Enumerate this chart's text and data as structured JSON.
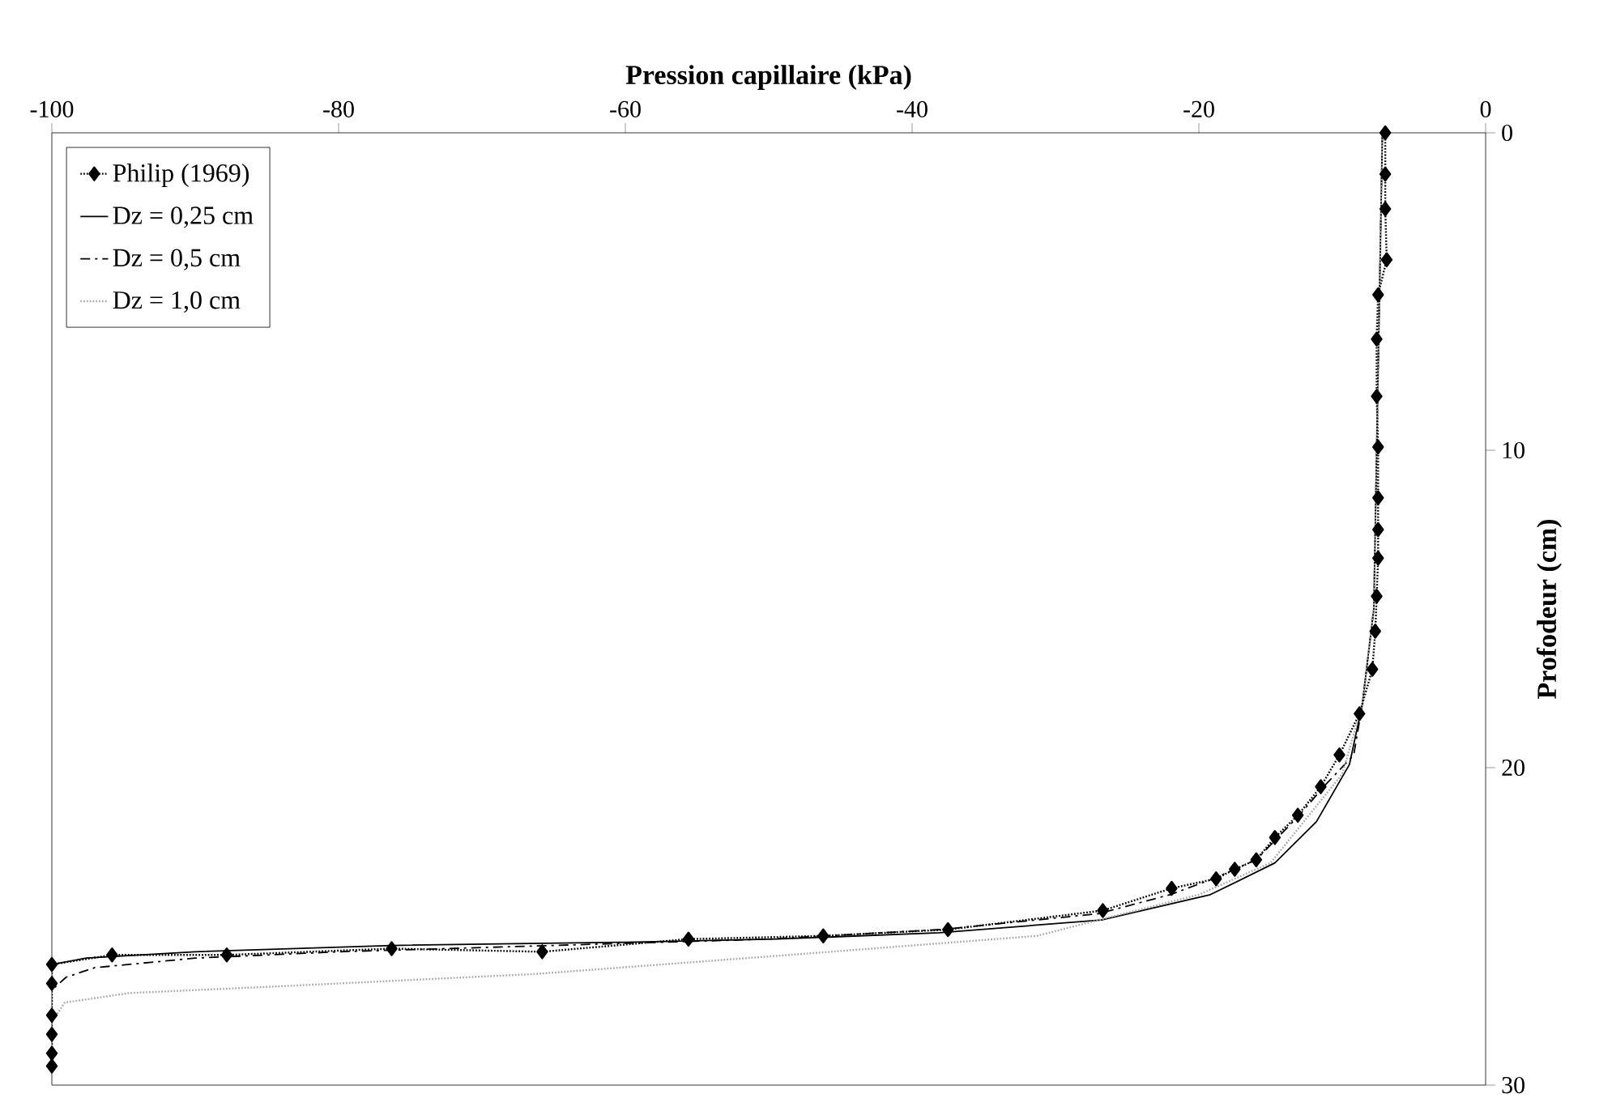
{
  "chart_data": {
    "type": "line",
    "xlabel": "Pression capillaire (kPa)",
    "ylabel": "Profodeur (cm)",
    "xlim": [
      -100,
      0
    ],
    "ylim": [
      30,
      0
    ],
    "xticks": [
      -100,
      -80,
      -60,
      -40,
      -20,
      0
    ],
    "yticks": [
      0,
      10,
      20,
      30
    ],
    "grid": false,
    "legend": "top left",
    "series": [
      {
        "name": "Philip (1969)",
        "color": "#000000",
        "marker": "diamond",
        "line_style": "dotted",
        "x": [
          -7.0,
          -7.0,
          -7.0,
          -6.9,
          -7.5,
          -7.6,
          -7.6,
          -7.5,
          -7.5,
          -7.5,
          -7.5,
          -7.6,
          -7.7,
          -7.9,
          -8.8,
          -10.2,
          -11.5,
          -13.1,
          -14.7,
          -16.0,
          -17.5,
          -18.8,
          -21.9,
          -26.7,
          -37.5,
          -46.2,
          -55.6,
          -65.8,
          -76.3,
          -87.8,
          -95.8,
          -100,
          -100,
          -100,
          -100,
          -100,
          -100
        ],
        "values": [
          0,
          1.3,
          2.4,
          4.0,
          5.1,
          6.5,
          8.3,
          9.9,
          11.5,
          12.5,
          13.4,
          14.6,
          15.7,
          16.9,
          18.3,
          19.6,
          20.6,
          21.5,
          22.2,
          22.9,
          23.2,
          23.5,
          23.8,
          24.5,
          25.1,
          25.3,
          25.4,
          25.8,
          25.7,
          25.9,
          25.9,
          26.2,
          26.8,
          27.8,
          28.4,
          29.0,
          29.4
        ]
      },
      {
        "name": "Dz = 0,25 cm",
        "color": "#000000",
        "marker": "none",
        "line_style": "solid",
        "x": [
          -7.2,
          -7.4,
          -7.6,
          -7.8,
          -8.6,
          -9.5,
          -11.8,
          -14.7,
          -19.2,
          -26.8,
          -38.1,
          -49.4,
          -60.0,
          -76.3,
          -90.0,
          -97.6,
          -100
        ],
        "values": [
          0,
          5,
          10,
          15,
          18,
          19.9,
          21.7,
          23.0,
          24.0,
          24.8,
          25.2,
          25.4,
          25.5,
          25.6,
          25.8,
          26.0,
          26.2
        ]
      },
      {
        "name": "Dz = 0,5 cm",
        "color": "#000000",
        "marker": "none",
        "line_style": "dashdot",
        "x": [
          -7.2,
          -7.4,
          -7.6,
          -7.8,
          -8.6,
          -9.2,
          -11.3,
          -13.0,
          -16.0,
          -19.0,
          -22.0,
          -27.0,
          -38.0,
          -50.0,
          -65.0,
          -80.0,
          -90.0,
          -97.0,
          -99.0,
          -100
        ],
        "values": [
          0,
          5,
          10,
          15,
          18,
          19.6,
          20.6,
          21.5,
          22.9,
          23.5,
          24.0,
          24.6,
          25.1,
          25.4,
          25.6,
          25.8,
          26.0,
          26.3,
          26.6,
          27.0
        ]
      },
      {
        "name": "Dz = 1,0 cm",
        "color": "#aaaaaa",
        "marker": "none",
        "line_style": "dotted",
        "x": [
          -7.2,
          -7.4,
          -7.6,
          -7.8,
          -8.6,
          -10.0,
          -15.0,
          -20.0,
          -27.0,
          -31.3,
          -48.6,
          -66.3,
          -84.7,
          -94.6,
          -99.1,
          -100
        ],
        "values": [
          0,
          5,
          10,
          15,
          18,
          20.2,
          23.0,
          24.0,
          24.8,
          25.3,
          25.9,
          26.5,
          26.9,
          27.1,
          27.4,
          28.0
        ]
      }
    ]
  }
}
